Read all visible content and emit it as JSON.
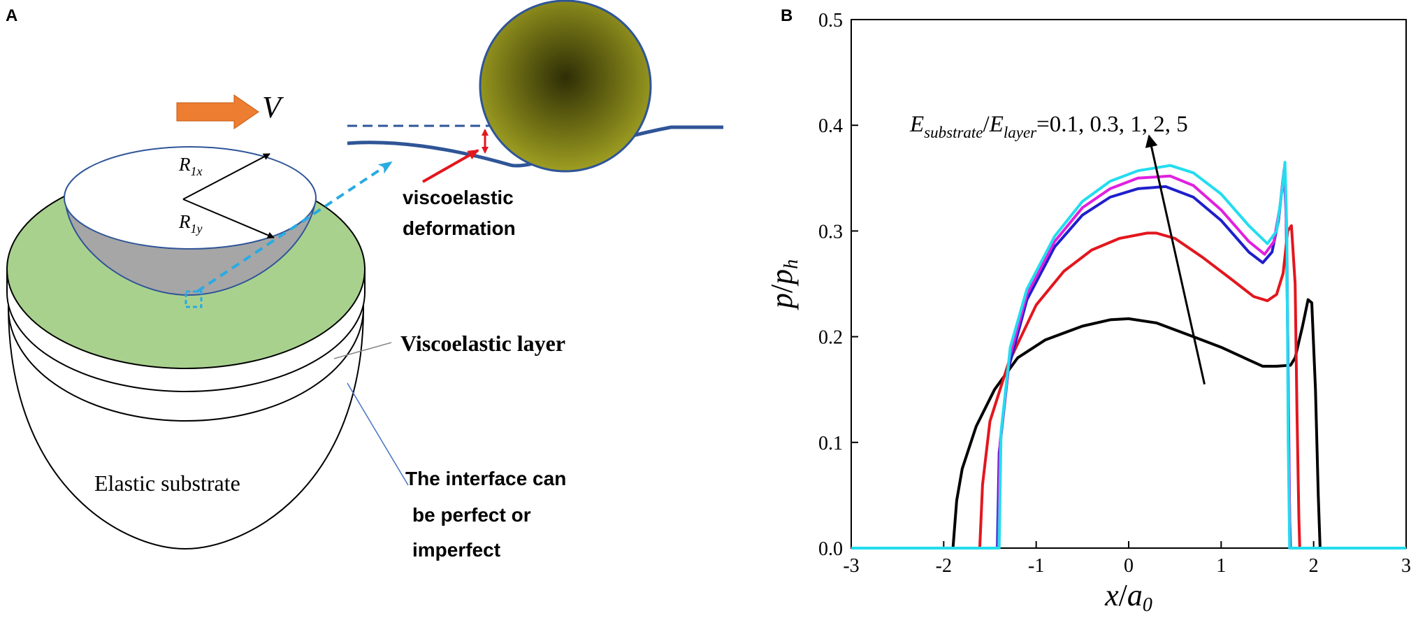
{
  "panel_a": {
    "label": "A",
    "velocity_symbol": "V",
    "radius_x": {
      "main": "R",
      "sub": "1x"
    },
    "radius_y": {
      "main": "R",
      "sub": "1y"
    },
    "viscoelastic_deformation_line1": "viscoelastic",
    "viscoelastic_deformation_line2": "deformation",
    "viscoelastic_layer_label": "Viscoelastic layer",
    "elastic_substrate_label": "Elastic substrate",
    "interface_line1": "The interface can",
    "interface_line2": "be perfect or",
    "interface_line3": "imperfect",
    "colors": {
      "arrow_orange": "#ED7D31",
      "layer_green": "#A9D18E",
      "indenter_gray": "#A6A6A6",
      "ball_olive": "#8E8E1E",
      "dash_blue": "#29ABE2",
      "surface_blue": "#2F5597",
      "red": "#E3161E"
    }
  },
  "panel_b": {
    "label": "B",
    "annotation": {
      "E1": "E",
      "sub1": "substrate",
      "slash": "/",
      "E2": "E",
      "sub2": "layer",
      "values": "=0.1, 0.3, 1, 2, 5"
    },
    "ylabel": {
      "p": "p",
      "slash": "/",
      "ph": "p",
      "sub": "h"
    },
    "xlabel": {
      "x": "x",
      "slash": "/",
      "a": "a",
      "sub": "0"
    }
  },
  "chart_data": {
    "type": "line",
    "xlim": [
      -3,
      3
    ],
    "ylim": [
      0,
      0.5
    ],
    "x_ticks": [
      -3,
      -2,
      -1,
      0,
      1,
      2,
      3
    ],
    "x_tick_labels": [
      "-3",
      "-2",
      "-1",
      "0",
      "1",
      "2",
      "3"
    ],
    "y_ticks": [
      0,
      0.1,
      0.2,
      0.3,
      0.4,
      0.5
    ],
    "y_tick_labels": [
      "0.0",
      "0.1",
      "0.2",
      "0.3",
      "0.4",
      "0.5"
    ],
    "grid": false,
    "arrow": {
      "from": [
        0.82,
        0.155
      ],
      "to": [
        0.22,
        0.39
      ]
    },
    "series": [
      {
        "color": "#000000",
        "x": [
          -3,
          -1.9,
          -1.86,
          -1.8,
          -1.65,
          -1.45,
          -1.2,
          -0.9,
          -0.5,
          -0.2,
          0,
          0.3,
          0.7,
          1.0,
          1.3,
          1.45,
          1.6,
          1.75,
          1.8,
          1.88,
          1.94,
          1.98,
          2.02,
          2.05,
          2.07,
          3
        ],
        "y": [
          0,
          0,
          0.045,
          0.075,
          0.115,
          0.15,
          0.18,
          0.197,
          0.21,
          0.216,
          0.217,
          0.213,
          0.2,
          0.19,
          0.178,
          0.172,
          0.172,
          0.173,
          0.18,
          0.21,
          0.235,
          0.232,
          0.15,
          0.05,
          0,
          0
        ]
      },
      {
        "color": "#E3161E",
        "x": [
          -3,
          -1.61,
          -1.58,
          -1.5,
          -1.3,
          -1.0,
          -0.7,
          -0.4,
          -0.1,
          0.2,
          0.3,
          0.5,
          0.8,
          1.1,
          1.35,
          1.5,
          1.6,
          1.67,
          1.72,
          1.76,
          1.8,
          1.82,
          1.84,
          1.85,
          3
        ],
        "y": [
          0,
          0,
          0.06,
          0.12,
          0.175,
          0.23,
          0.262,
          0.282,
          0.293,
          0.298,
          0.298,
          0.293,
          0.275,
          0.255,
          0.238,
          0.234,
          0.24,
          0.26,
          0.3,
          0.305,
          0.25,
          0.13,
          0.03,
          0,
          0
        ]
      },
      {
        "color": "#1F1FCC",
        "x": [
          -3,
          -1.42,
          -1.4,
          -1.3,
          -1.1,
          -0.8,
          -0.5,
          -0.2,
          0.1,
          0.4,
          0.7,
          1.0,
          1.3,
          1.45,
          1.55,
          1.62,
          1.67,
          1.7,
          1.72,
          1.74,
          1.75,
          3
        ],
        "y": [
          0,
          0,
          0.09,
          0.17,
          0.235,
          0.285,
          0.315,
          0.332,
          0.34,
          0.342,
          0.332,
          0.31,
          0.28,
          0.27,
          0.28,
          0.31,
          0.35,
          0.33,
          0.2,
          0.03,
          0,
          0
        ]
      },
      {
        "color": "#E020E0",
        "x": [
          -3,
          -1.41,
          -1.39,
          -1.29,
          -1.1,
          -0.8,
          -0.5,
          -0.2,
          0.1,
          0.45,
          0.7,
          1.0,
          1.3,
          1.47,
          1.57,
          1.64,
          1.68,
          1.71,
          1.73,
          1.745,
          3
        ],
        "y": [
          0,
          0,
          0.1,
          0.18,
          0.24,
          0.29,
          0.322,
          0.34,
          0.35,
          0.352,
          0.343,
          0.32,
          0.29,
          0.278,
          0.29,
          0.325,
          0.358,
          0.3,
          0.1,
          0,
          0
        ]
      },
      {
        "color": "#22DDEE",
        "x": [
          -3,
          -1.4,
          -1.38,
          -1.28,
          -1.1,
          -0.8,
          -0.5,
          -0.2,
          0.1,
          0.45,
          0.7,
          1.0,
          1.3,
          1.5,
          1.6,
          1.66,
          1.69,
          1.71,
          1.725,
          1.74,
          3
        ],
        "y": [
          0,
          0,
          0.11,
          0.19,
          0.245,
          0.295,
          0.328,
          0.347,
          0.357,
          0.362,
          0.355,
          0.335,
          0.305,
          0.288,
          0.3,
          0.34,
          0.365,
          0.3,
          0.1,
          0,
          0
        ]
      }
    ]
  }
}
